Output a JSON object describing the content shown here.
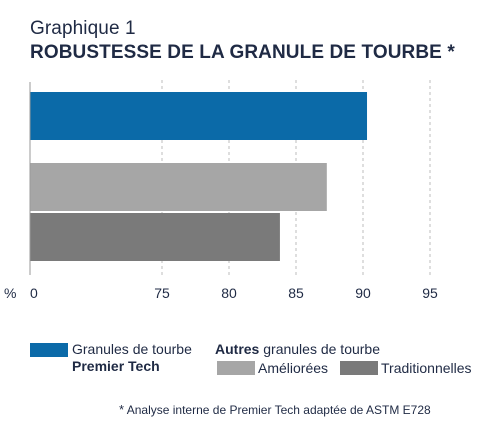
{
  "header": {
    "title_line1": "Graphique 1",
    "title_line2": "ROBUSTESSE DE LA GRANULE DE TOURBE *"
  },
  "chart_data": {
    "type": "bar",
    "orientation": "horizontal",
    "axis_break": true,
    "x_unit_label": "%",
    "x_ticks": [
      "0",
      "75",
      "80",
      "85",
      "90",
      "95"
    ],
    "x_tick_values": [
      0,
      75,
      80,
      85,
      90,
      95
    ],
    "grid": "vertical-dashed",
    "categories": [
      "Granules de tourbe Premier Tech",
      "Améliorées",
      "Traditionnelles"
    ],
    "values": [
      90.3,
      87.3,
      83.8
    ],
    "colors": [
      "#0b6aa8",
      "#a6a6a6",
      "#7a7a7a"
    ]
  },
  "legend": {
    "pt_line1": "Granules de tourbe",
    "pt_line2": "Premier Tech",
    "others_bold": "Autres",
    "others_rest": " granules de tourbe",
    "improved": "Améliorées",
    "traditional": "Traditionnelles",
    "colors": {
      "pt": "#0b6aa8",
      "improved": "#a6a6a6",
      "traditional": "#7a7a7a"
    }
  },
  "footnote": {
    "star": "*",
    "text": " Analyse interne de Premier Tech adaptée de ASTM E728"
  }
}
